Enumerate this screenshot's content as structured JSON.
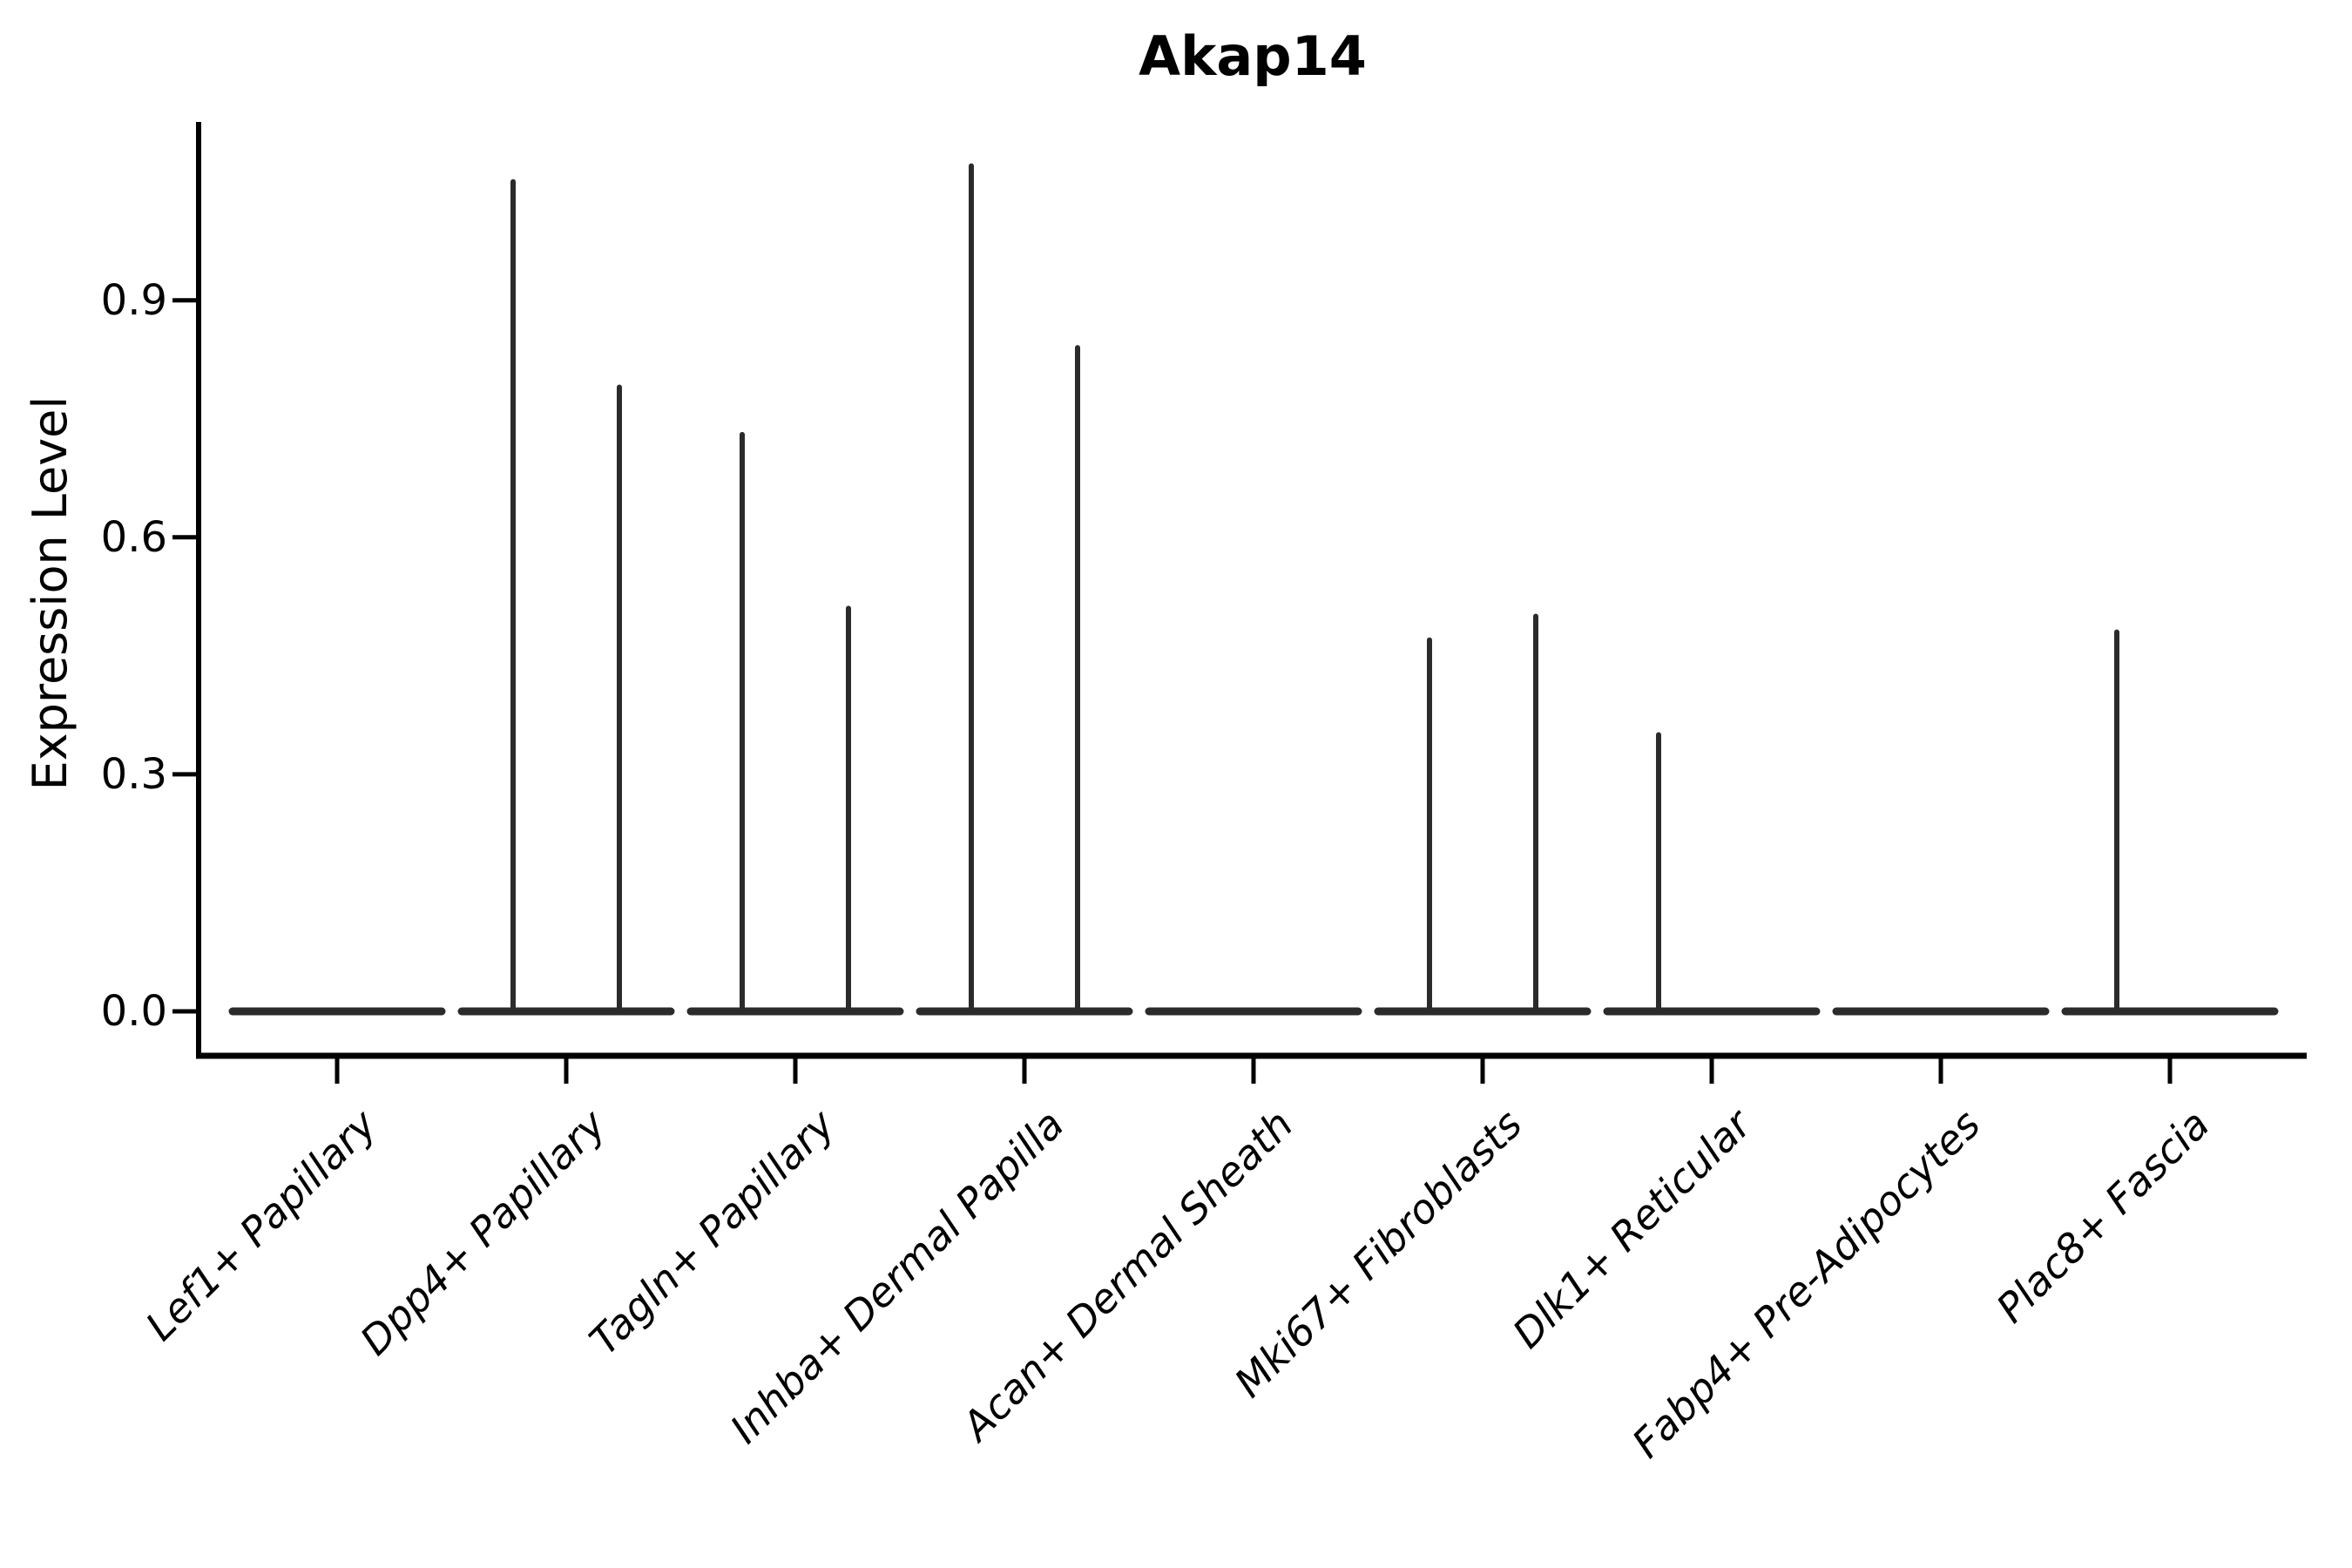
{
  "figure": {
    "title": "Akap14",
    "ylabel": "Expression Level"
  },
  "chart_data": {
    "type": "violin",
    "title": "Akap14",
    "xlabel": "",
    "ylabel": "Expression Level",
    "ylim": [
      0,
      1.13
    ],
    "ytick_labels": [
      "0.0",
      "0.3",
      "0.6",
      "0.9"
    ],
    "ytick_values": [
      0.0,
      0.3,
      0.6,
      0.9
    ],
    "grid": false,
    "legend": "none",
    "categories": [
      "Lef1+ Papillary",
      "Dpp4+ Papillary",
      "Tagln+ Papillary",
      "Inhba+ Dermal Papilla",
      "Acan+ Dermal Sheath",
      "Mki67+ Fibroblasts",
      "Dlk1+ Reticular",
      "Fabp4+ Pre-Adipocytes",
      "Plac8+ Fascia"
    ],
    "baseline_value": 0.0,
    "series": [
      {
        "name": "left-half-violin-max",
        "values": [
          0,
          1.05,
          0.73,
          1.07,
          0,
          0.47,
          0.35,
          0,
          0.48
        ]
      },
      {
        "name": "right-half-violin-max",
        "values": [
          0,
          0.79,
          0.51,
          0.84,
          0,
          0.5,
          0,
          0,
          0
        ]
      }
    ],
    "annotations": "Each cluster shows a flat violin base at 0 with narrow density spikes up to the listed maxima; clusters Lef1+ Papillary, Acan+ Dermal Sheath and Fabp4+ Pre-Adipocytes have no spikes",
    "style": {
      "violin_color": "#2b2b2b",
      "axis_color": "#000000",
      "background": "#ffffff",
      "x_labels": "italic, rotated 45deg"
    }
  }
}
